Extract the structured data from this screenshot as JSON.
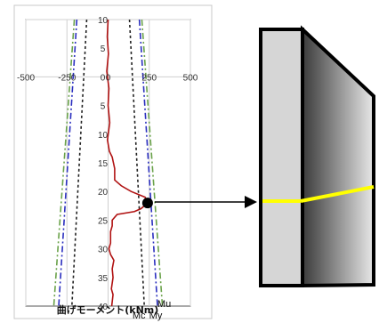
{
  "chart_data": {
    "type": "line",
    "xlabel": "曲げモーメント(kNm)",
    "xlim": [
      -500,
      500
    ],
    "xticks": [
      -500,
      -250,
      0,
      250,
      500
    ],
    "ylim": [
      -10,
      40
    ],
    "yticks": [
      -10,
      -5,
      0,
      5,
      10,
      15,
      20,
      25,
      30,
      35,
      40
    ],
    "ytick_labels": [
      "10",
      "5",
      "0",
      "5",
      "10",
      "15",
      "20",
      "25",
      "30",
      "35",
      "40"
    ],
    "grid": true,
    "series": [
      {
        "name": "",
        "style": "solid",
        "color": "#b01212",
        "points": [
          [
            0,
            -10
          ],
          [
            -5,
            -7
          ],
          [
            2,
            -4
          ],
          [
            -8,
            -1
          ],
          [
            5,
            2
          ],
          [
            0,
            5
          ],
          [
            10,
            8
          ],
          [
            -4,
            11
          ],
          [
            8,
            13
          ],
          [
            25,
            14
          ],
          [
            40,
            16
          ],
          [
            40,
            18
          ],
          [
            80,
            19
          ],
          [
            140,
            20
          ],
          [
            225,
            21
          ],
          [
            240,
            22
          ],
          [
            200,
            23
          ],
          [
            160,
            23.5
          ],
          [
            55,
            24
          ],
          [
            25,
            25
          ],
          [
            25,
            26
          ],
          [
            15,
            27
          ],
          [
            15,
            29
          ],
          [
            5,
            30
          ],
          [
            15,
            31
          ],
          [
            35,
            32
          ],
          [
            25,
            33.5
          ],
          [
            30,
            35
          ],
          [
            20,
            37
          ],
          [
            30,
            38
          ],
          [
            22,
            40
          ]
        ]
      },
      {
        "name": "Mc",
        "style": "dotted",
        "color": "#222222",
        "left": [
          [
            -130,
            -10
          ],
          [
            -220,
            40
          ]
        ],
        "right": [
          [
            130,
            -10
          ],
          [
            220,
            40
          ]
        ]
      },
      {
        "name": "My",
        "style": "dash-dot",
        "color": "#2b2fbf",
        "left": [
          [
            -190,
            -10
          ],
          [
            -300,
            40
          ]
        ],
        "right": [
          [
            190,
            -10
          ],
          [
            300,
            40
          ]
        ]
      },
      {
        "name": "Mu",
        "style": "dash-dot",
        "color": "#6aa24a",
        "left": [
          [
            -205,
            -10
          ],
          [
            -330,
            40
          ]
        ],
        "right": [
          [
            205,
            -10
          ],
          [
            330,
            40
          ]
        ]
      }
    ],
    "marker": {
      "x": 240,
      "y": 22
    }
  },
  "colors": {
    "beam_light": "#d6d6d6",
    "beam_gradient_dark": "#3a3a3a",
    "beam_gradient_light": "#e8e8e8",
    "highlight_line": "#ffff00"
  }
}
